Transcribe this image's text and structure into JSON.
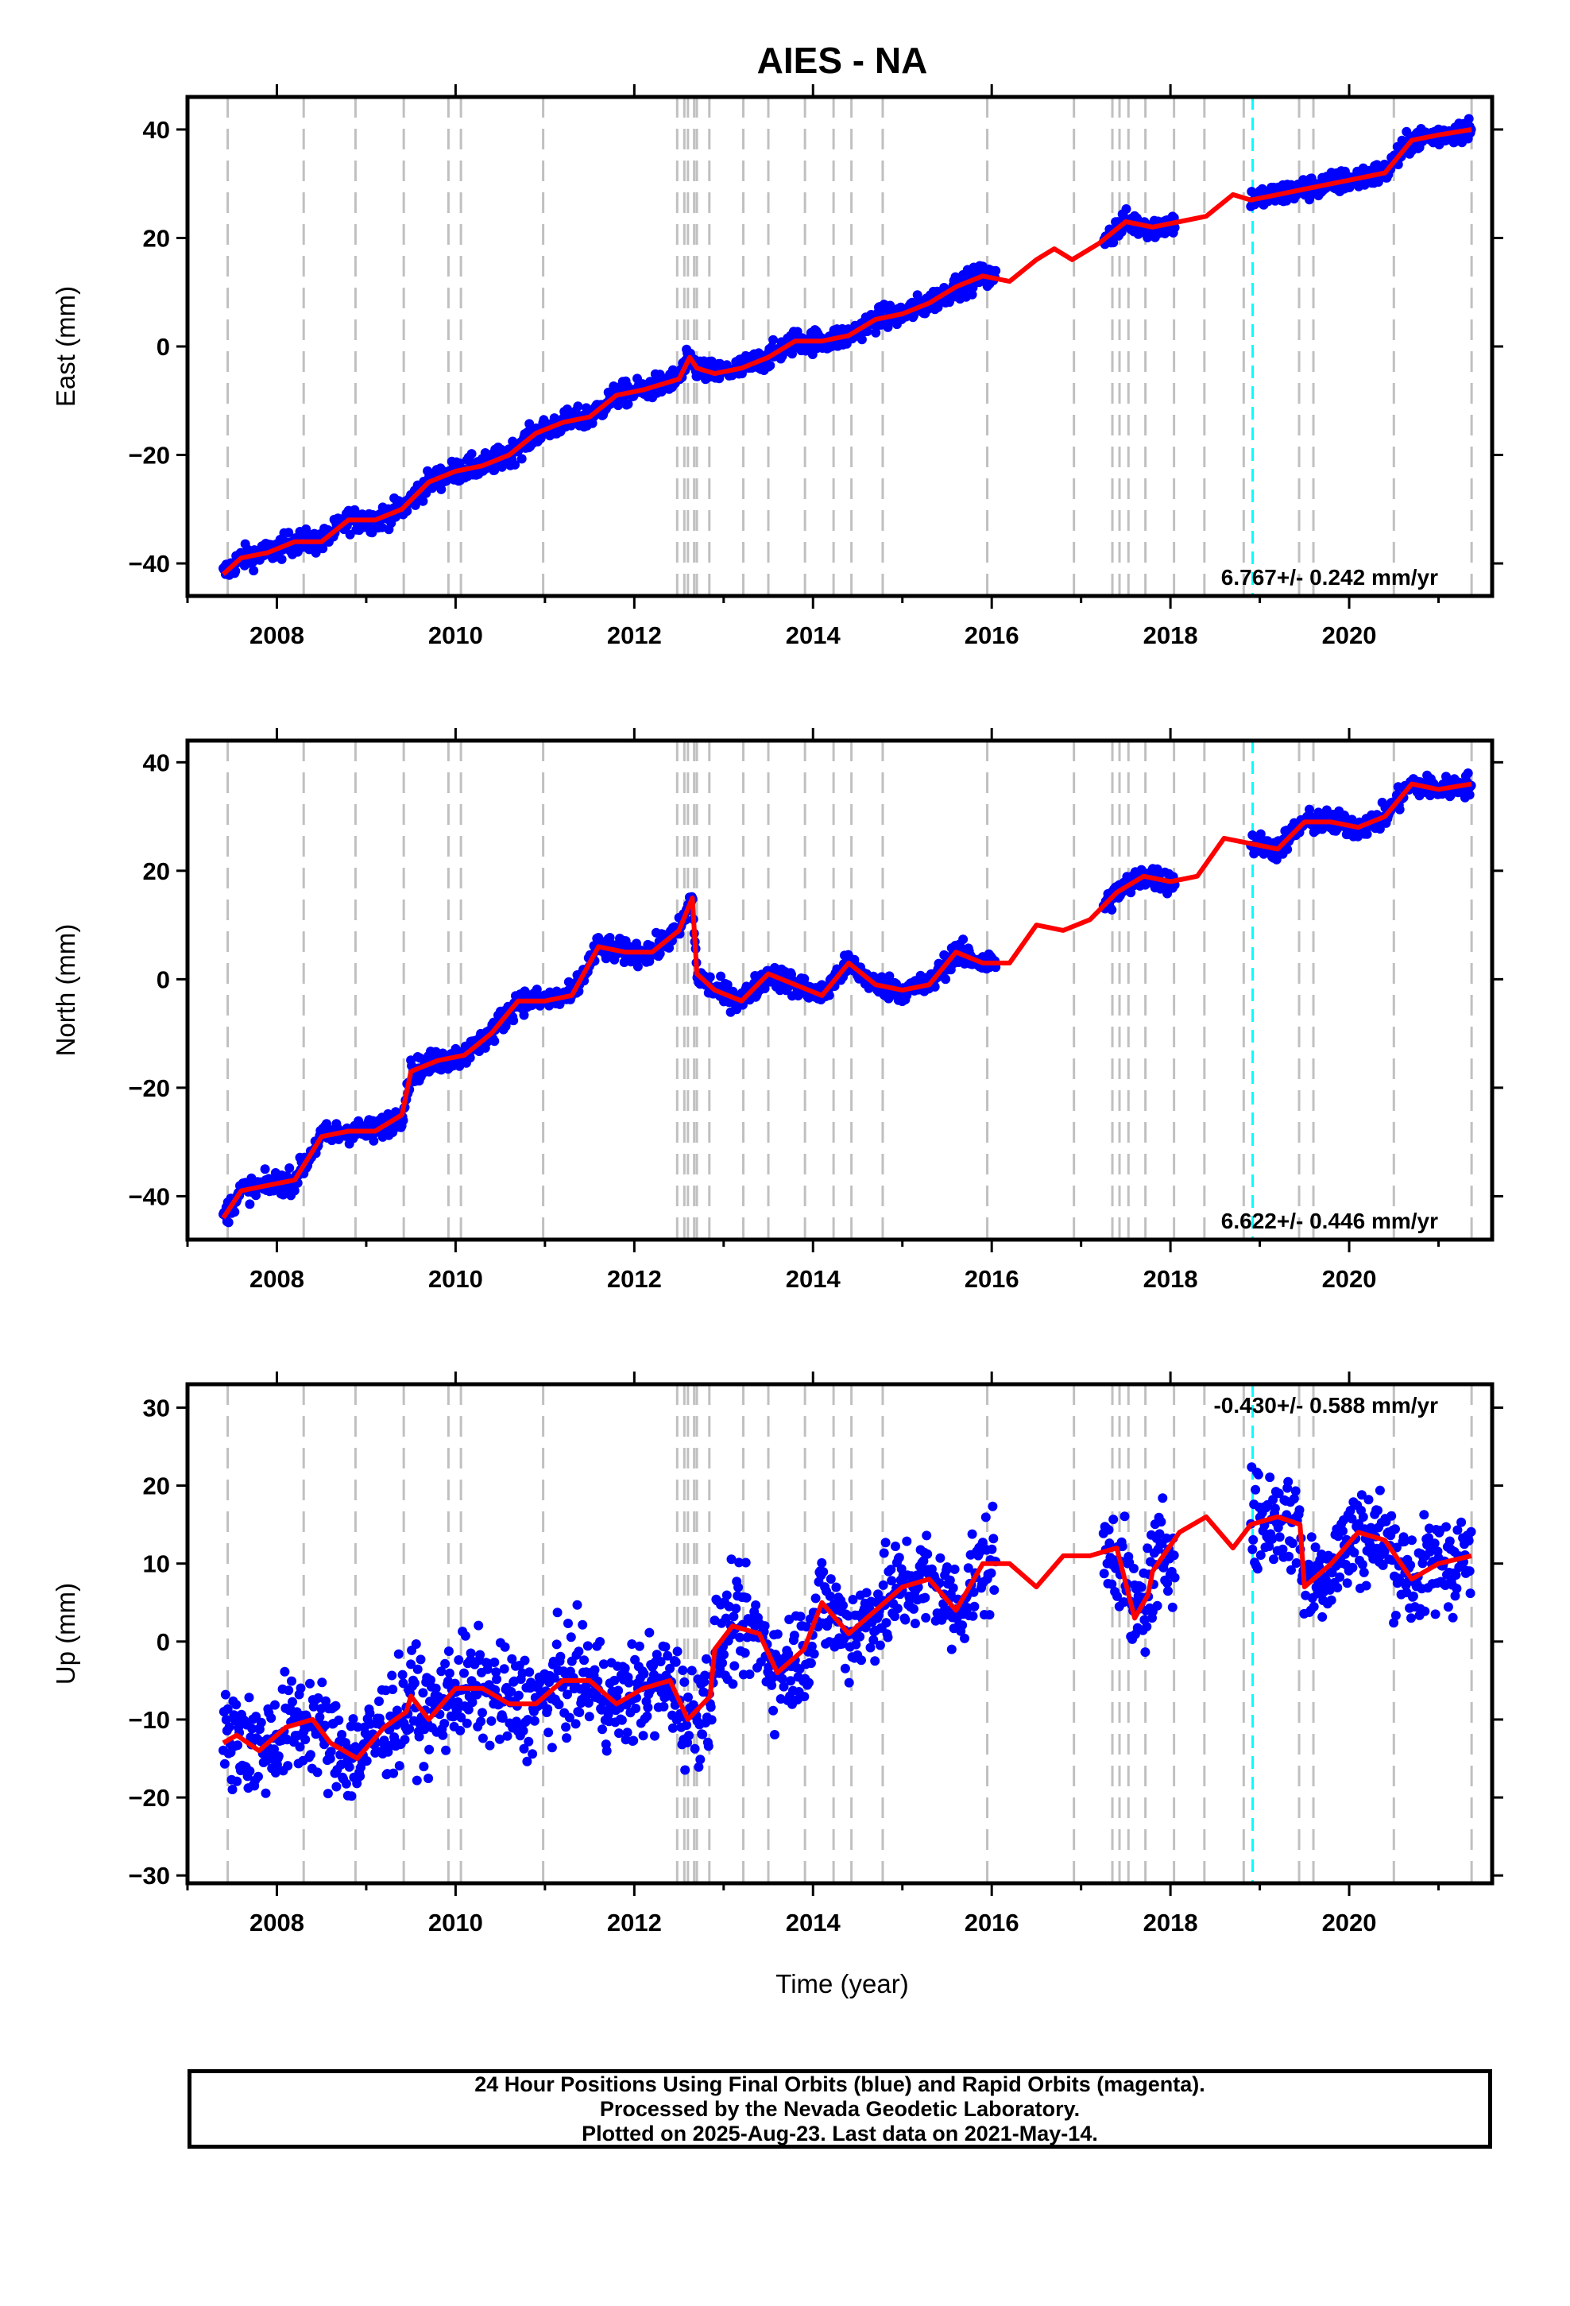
{
  "title": "AIES - NA",
  "xlabel": "Time (year)",
  "footer": {
    "line1": "24 Hour Positions Using Final Orbits (blue) and Rapid Orbits (magenta).",
    "line2": "Processed by the Nevada Geodetic Laboratory.",
    "line3": "Plotted on 2025-Aug-23. Last data on 2021-May-14."
  },
  "colors": {
    "final_orbits": "#0000ff",
    "model_fit": "#ff0000",
    "event_lines": "#c0c0c0",
    "equipment_change_line": "#00ffff"
  },
  "chart_data": [
    {
      "type": "scatter",
      "name": "east",
      "ylabel": "East (mm)",
      "xlim": [
        2007.0,
        2021.6
      ],
      "ylim": [
        -46,
        46
      ],
      "yticks": [
        -40,
        -20,
        0,
        20,
        40
      ],
      "xticks": [
        2008,
        2010,
        2012,
        2014,
        2016,
        2018,
        2020
      ],
      "rate_label": "6.767+/- 0.242 mm/yr",
      "rate_position": "bottom-right",
      "data_ranges": [
        [
          2007.4,
          2016.05
        ],
        [
          2017.25,
          2018.05
        ],
        [
          2018.9,
          2021.37
        ]
      ],
      "fit_curve": {
        "x": [
          2007.4,
          2007.6,
          2007.9,
          2008.2,
          2008.5,
          2008.8,
          2009.1,
          2009.4,
          2009.7,
          2010.0,
          2010.3,
          2010.6,
          2010.9,
          2011.2,
          2011.5,
          2011.8,
          2012.1,
          2012.5,
          2012.62,
          2012.7,
          2012.9,
          2013.2,
          2013.5,
          2013.8,
          2014.1,
          2014.4,
          2014.7,
          2015.0,
          2015.3,
          2015.6,
          2015.9,
          2016.2,
          2016.5,
          2016.7,
          2016.9,
          2017.2,
          2017.5,
          2017.8,
          2018.1,
          2018.4,
          2018.7,
          2018.9,
          2019.2,
          2019.5,
          2019.8,
          2020.1,
          2020.4,
          2020.7,
          2021.0,
          2021.37
        ],
        "y": [
          -42,
          -39,
          -38,
          -36,
          -36,
          -32,
          -32,
          -30,
          -25,
          -23,
          -22,
          -20,
          -16,
          -14,
          -13,
          -9,
          -8,
          -6,
          -2,
          -4,
          -5,
          -4,
          -2,
          1,
          1,
          2,
          5,
          6,
          8,
          11,
          13,
          12,
          16,
          18,
          16,
          19,
          23,
          22,
          23,
          24,
          28,
          27,
          28,
          29,
          30,
          31,
          32,
          38,
          39,
          40
        ]
      }
    },
    {
      "type": "scatter",
      "name": "north",
      "ylabel": "North (mm)",
      "xlim": [
        2007.0,
        2021.6
      ],
      "ylim": [
        -48,
        44
      ],
      "yticks": [
        -40,
        -20,
        0,
        20,
        40
      ],
      "xticks": [
        2008,
        2010,
        2012,
        2014,
        2016,
        2018,
        2020
      ],
      "rate_label": "6.622+/- 0.446 mm/yr",
      "rate_position": "bottom-right",
      "data_ranges": [
        [
          2007.4,
          2016.05
        ],
        [
          2017.25,
          2018.05
        ],
        [
          2018.9,
          2021.37
        ]
      ],
      "fit_curve": {
        "x": [
          2007.4,
          2007.6,
          2007.9,
          2008.2,
          2008.5,
          2008.8,
          2009.1,
          2009.4,
          2009.5,
          2009.8,
          2010.1,
          2010.4,
          2010.7,
          2011.0,
          2011.3,
          2011.6,
          2011.9,
          2012.2,
          2012.5,
          2012.65,
          2012.7,
          2012.9,
          2013.2,
          2013.5,
          2013.8,
          2014.1,
          2014.4,
          2014.7,
          2015.0,
          2015.3,
          2015.6,
          2015.9,
          2016.2,
          2016.5,
          2016.8,
          2017.1,
          2017.4,
          2017.7,
          2018.0,
          2018.3,
          2018.6,
          2018.9,
          2019.2,
          2019.5,
          2019.8,
          2020.1,
          2020.4,
          2020.7,
          2021.0,
          2021.37
        ],
        "y": [
          -44,
          -39,
          -38,
          -37,
          -29,
          -28,
          -28,
          -25,
          -17,
          -15,
          -14,
          -10,
          -4,
          -4,
          -3,
          6,
          5,
          5,
          9,
          15,
          1,
          -2,
          -4,
          1,
          -1,
          -3,
          3,
          -1,
          -2,
          -1,
          5,
          3,
          3,
          10,
          9,
          11,
          16,
          19,
          18,
          19,
          26,
          25,
          24,
          29,
          29,
          28,
          30,
          36,
          35,
          36
        ]
      }
    },
    {
      "type": "scatter",
      "name": "up",
      "ylabel": "Up (mm)",
      "xlim": [
        2007.0,
        2021.6
      ],
      "ylim": [
        -31,
        33
      ],
      "yticks": [
        -30,
        -20,
        -10,
        0,
        10,
        20,
        30
      ],
      "xticks": [
        2008,
        2010,
        2012,
        2014,
        2016,
        2018,
        2020
      ],
      "rate_label": "-0.430+/- 0.588 mm/yr",
      "rate_position": "top-right",
      "data_ranges": [
        [
          2007.4,
          2016.05
        ],
        [
          2017.25,
          2018.05
        ],
        [
          2018.9,
          2021.37
        ]
      ],
      "fit_curve": {
        "x": [
          2007.4,
          2007.55,
          2007.8,
          2008.1,
          2008.4,
          2008.6,
          2008.9,
          2009.2,
          2009.45,
          2009.5,
          2009.7,
          2010.0,
          2010.3,
          2010.6,
          2010.9,
          2011.2,
          2011.5,
          2011.8,
          2012.1,
          2012.4,
          2012.6,
          2012.85,
          2012.9,
          2013.1,
          2013.4,
          2013.6,
          2013.9,
          2014.1,
          2014.4,
          2014.7,
          2015.0,
          2015.3,
          2015.6,
          2015.9,
          2016.2,
          2016.5,
          2016.8,
          2017.1,
          2017.4,
          2017.6,
          2017.75,
          2017.8,
          2018.1,
          2018.4,
          2018.7,
          2018.9,
          2019.2,
          2019.45,
          2019.5,
          2019.8,
          2020.1,
          2020.4,
          2020.7,
          2021.0,
          2021.37
        ],
        "y": [
          -13,
          -12,
          -14,
          -11,
          -10,
          -13,
          -15,
          -11,
          -9,
          -7,
          -10,
          -6,
          -6,
          -8,
          -8,
          -5,
          -5,
          -8,
          -6,
          -5,
          -10,
          -7,
          -1,
          2,
          1,
          -4,
          -1,
          5,
          1,
          4,
          7,
          8,
          4,
          10,
          10,
          7,
          11,
          11,
          12,
          3,
          6,
          9,
          14,
          16,
          12,
          15,
          16,
          15,
          7,
          10,
          14,
          13,
          8,
          10,
          11
        ]
      }
    }
  ]
}
